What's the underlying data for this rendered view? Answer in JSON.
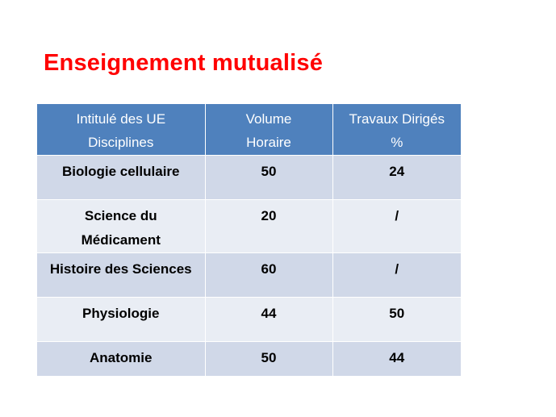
{
  "title": "Enseignement mutualisé",
  "table": {
    "headers": [
      [
        "Intitulé des UE",
        "Disciplines"
      ],
      [
        "Volume",
        "Horaire"
      ],
      [
        "Travaux Dirigés",
        "%"
      ]
    ],
    "rows": [
      {
        "discipline": [
          "Biologie cellulaire"
        ],
        "volume": "50",
        "td": "24"
      },
      {
        "discipline": [
          "Science du",
          "Médicament"
        ],
        "volume": "20",
        "td": "/"
      },
      {
        "discipline": [
          "Histoire des Sciences"
        ],
        "volume": "60",
        "td": "/"
      },
      {
        "discipline": [
          "Physiologie"
        ],
        "volume": "44",
        "td": "50"
      },
      {
        "discipline": [
          "Anatomie"
        ],
        "volume": "50",
        "td": "44"
      }
    ]
  }
}
